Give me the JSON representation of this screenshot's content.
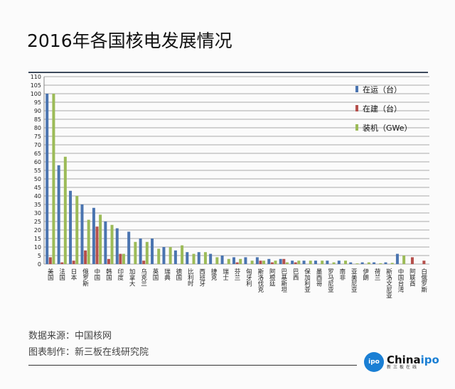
{
  "title": "2016年各国核电发展情况",
  "footer": {
    "source": "数据来源：中国核网",
    "maker": "图表制作：新三板在线研究院"
  },
  "logo": {
    "badge": "ipo",
    "name_a": "China",
    "name_b": "ipo",
    "sub": "新三板在线"
  },
  "chart_data": {
    "type": "bar",
    "title": "",
    "ylim": [
      0,
      110
    ],
    "yticks": [
      0,
      5,
      10,
      15,
      20,
      25,
      30,
      35,
      40,
      45,
      50,
      55,
      60,
      65,
      70,
      75,
      80,
      85,
      90,
      95,
      100,
      105,
      110
    ],
    "grid": true,
    "legend_position": "top-right",
    "categories": [
      "美国",
      "法国",
      "日本",
      "俄罗斯",
      "中国",
      "韩国",
      "印度",
      "加拿大",
      "乌克兰",
      "英国",
      "瑞典",
      "德国",
      "比利时",
      "西班牙",
      "捷克",
      "瑞士",
      "芬兰",
      "匈牙利",
      "斯洛伐克",
      "阿根廷",
      "巴基斯坦",
      "巴西",
      "保加利亚",
      "墨西哥",
      "罗马尼亚",
      "南非",
      "亚美尼亚",
      "伊朗",
      "荷兰",
      "斯洛文尼亚",
      "中国台湾",
      "阿联酋",
      "白俄罗斯"
    ],
    "series": [
      {
        "name": "在运（台）",
        "color": "#4a74b0",
        "values": [
          100,
          58,
          43,
          35,
          33,
          25,
          21,
          19,
          15,
          15,
          10,
          8,
          7,
          7,
          6,
          5,
          4,
          4,
          4,
          3,
          3,
          2,
          2,
          2,
          2,
          2,
          1,
          1,
          1,
          1,
          6,
          0,
          0
        ]
      },
      {
        "name": "在建（台）",
        "color": "#b5504c",
        "values": [
          4,
          1,
          2,
          8,
          22,
          3,
          6,
          0,
          2,
          0,
          0,
          0,
          0,
          0,
          0,
          0,
          1,
          0,
          2,
          1,
          3,
          1,
          0,
          0,
          0,
          0,
          0,
          0,
          0,
          0,
          0,
          4,
          2
        ]
      },
      {
        "name": "装机（GWe）",
        "color": "#9cbb58",
        "values": [
          100,
          63,
          40,
          26,
          29,
          23,
          6,
          13,
          13,
          9,
          10,
          11,
          6,
          7,
          4,
          3,
          3,
          2,
          2,
          2,
          1,
          2,
          2,
          2,
          1,
          2,
          0.4,
          1,
          0.5,
          0.7,
          5,
          0,
          0
        ]
      }
    ]
  }
}
